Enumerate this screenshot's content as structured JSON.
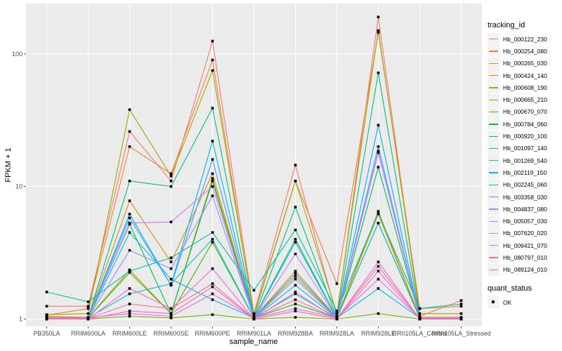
{
  "chart_data": {
    "type": "line",
    "title": "",
    "xlabel": "sample_name",
    "ylabel": "FPKM + 1",
    "yscale": "log10",
    "ylim": [
      0.88,
      240
    ],
    "yticks": [
      1,
      10,
      100
    ],
    "ytick_labels": [
      "1",
      "10",
      "100"
    ],
    "grid": true,
    "legend_position": "right",
    "categories": [
      "PB350LA",
      "RRIM600LA",
      "RRIM600LE",
      "RRIM600SE",
      "RRIM600PE",
      "RRIM901LA",
      "RRIM928BA",
      "RRIM928LA",
      "RRIM928LE",
      "RRII105LA_Control",
      "RRII105LA_Stressed"
    ],
    "category_labels": [
      "PB350LA",
      "RRIM600LA",
      "RRIM600LE",
      "RRIM600SE",
      "RRIM600PE",
      "RRIM901LA",
      "RRIM928BA",
      "RRIM928LA",
      "RRIM928LE",
      "RRII105LA_Control",
      "RRII105LA_Stressed"
    ],
    "legend_title": "tracking_id",
    "series": [
      {
        "name": "Hb_000122_230",
        "color": "#F8766D",
        "values": [
          1.25,
          1.25,
          26,
          11,
          125,
          1.1,
          14.5,
          1.05,
          190,
          1.05,
          1.38
        ]
      },
      {
        "name": "Hb_000254_080",
        "color": "#EA8331",
        "values": [
          1.07,
          1.2,
          20,
          12.5,
          90,
          1.05,
          11,
          1.85,
          145,
          1.2,
          1.25
        ]
      },
      {
        "name": "Hb_000265_030",
        "color": "#D89000",
        "values": [
          1.05,
          1.03,
          7.8,
          2.7,
          12.5,
          1.03,
          2.3,
          1.03,
          6.5,
          1.03,
          1.03
        ]
      },
      {
        "name": "Hb_000424_140",
        "color": "#C09B00",
        "values": [
          1.03,
          1.02,
          2.35,
          1.1,
          11.5,
          1.02,
          2.1,
          1.02,
          6.2,
          1.02,
          1.02
        ]
      },
      {
        "name": "Hb_000608_190",
        "color": "#A3A500",
        "values": [
          1.08,
          1.1,
          38,
          12,
          75,
          1.08,
          11,
          1.1,
          150,
          1.1,
          1.1
        ]
      },
      {
        "name": "Hb_000665_210",
        "color": "#7CAE00",
        "values": [
          1.0,
          1.0,
          1.05,
          1.02,
          1.08,
          1.0,
          1.03,
          1.0,
          1.1,
          1.0,
          1.0
        ]
      },
      {
        "name": "Hb_000670_070",
        "color": "#39B600",
        "values": [
          1.02,
          1.02,
          2.25,
          1.1,
          3.8,
          1.02,
          1.3,
          1.02,
          5.3,
          1.02,
          1.02
        ]
      },
      {
        "name": "Hb_000784_060",
        "color": "#00BB4E",
        "values": [
          1.02,
          1.02,
          5.2,
          1.1,
          11,
          1.02,
          4.0,
          1.02,
          14,
          1.02,
          1.02
        ]
      },
      {
        "name": "Hb_000920_100",
        "color": "#00BF7D",
        "values": [
          1.02,
          1.02,
          11,
          10,
          39,
          1.02,
          7,
          1.02,
          72,
          1.02,
          1.02
        ]
      },
      {
        "name": "Hb_001097_140",
        "color": "#00C1A3",
        "values": [
          1.6,
          1.35,
          2.3,
          2.9,
          4.5,
          1.65,
          4.7,
          1.15,
          6.3,
          1.2,
          1.3
        ]
      },
      {
        "name": "Hb_001269_540",
        "color": "#00BFC4",
        "values": [
          1.02,
          1.02,
          1.55,
          1.85,
          4.0,
          1.02,
          1.55,
          1.02,
          5.3,
          1.02,
          1.02
        ]
      },
      {
        "name": "Hb_002119_150",
        "color": "#00BAE0",
        "values": [
          1.02,
          1.02,
          4.5,
          2.0,
          1.4,
          1.02,
          1.8,
          1.02,
          1.7,
          1.02,
          1.02
        ]
      },
      {
        "name": "Hb_002245_060",
        "color": "#00B0F6",
        "values": [
          1.02,
          1.02,
          6.2,
          1.8,
          22,
          1.02,
          3.8,
          1.02,
          29,
          1.02,
          1.02
        ]
      },
      {
        "name": "Hb_003358_030",
        "color": "#35A2FF",
        "values": [
          1.02,
          1.02,
          5.8,
          1.8,
          16,
          1.02,
          2.2,
          1.02,
          20,
          1.02,
          1.02
        ]
      },
      {
        "name": "Hb_004837_080",
        "color": "#9590FF",
        "values": [
          1.02,
          1.02,
          3.3,
          2.4,
          8.5,
          1.02,
          2.0,
          1.02,
          18.5,
          1.02,
          1.02
        ]
      },
      {
        "name": "Hb_005057_030",
        "color": "#C77CFF",
        "values": [
          1.02,
          1.02,
          5.3,
          5.4,
          10,
          1.02,
          3.1,
          1.02,
          18,
          1.02,
          1.02
        ]
      },
      {
        "name": "Hb_007620_020",
        "color": "#E76BF3",
        "values": [
          1.02,
          1.02,
          1.1,
          1.05,
          1.55,
          1.02,
          1.2,
          1.02,
          2.0,
          1.02,
          1.02
        ]
      },
      {
        "name": "Hb_009421_070",
        "color": "#FA62DB",
        "values": [
          1.0,
          1.0,
          1.7,
          1.2,
          2.4,
          1.0,
          1.6,
          1.0,
          2.7,
          1.0,
          1.0
        ]
      },
      {
        "name": "Hb_080797_010",
        "color": "#FF62BC",
        "values": [
          1.0,
          1.0,
          1.15,
          1.1,
          1.75,
          1.0,
          1.15,
          1.0,
          2.3,
          1.0,
          1.0
        ]
      },
      {
        "name": "Hb_089124_010",
        "color": "#FF6C91",
        "values": [
          1.01,
          1.01,
          1.3,
          1.2,
          1.85,
          1.01,
          1.4,
          1.01,
          2.5,
          1.01,
          1.01
        ]
      }
    ],
    "shape_legend": {
      "title": "quant_status",
      "items": [
        "OK"
      ]
    }
  }
}
